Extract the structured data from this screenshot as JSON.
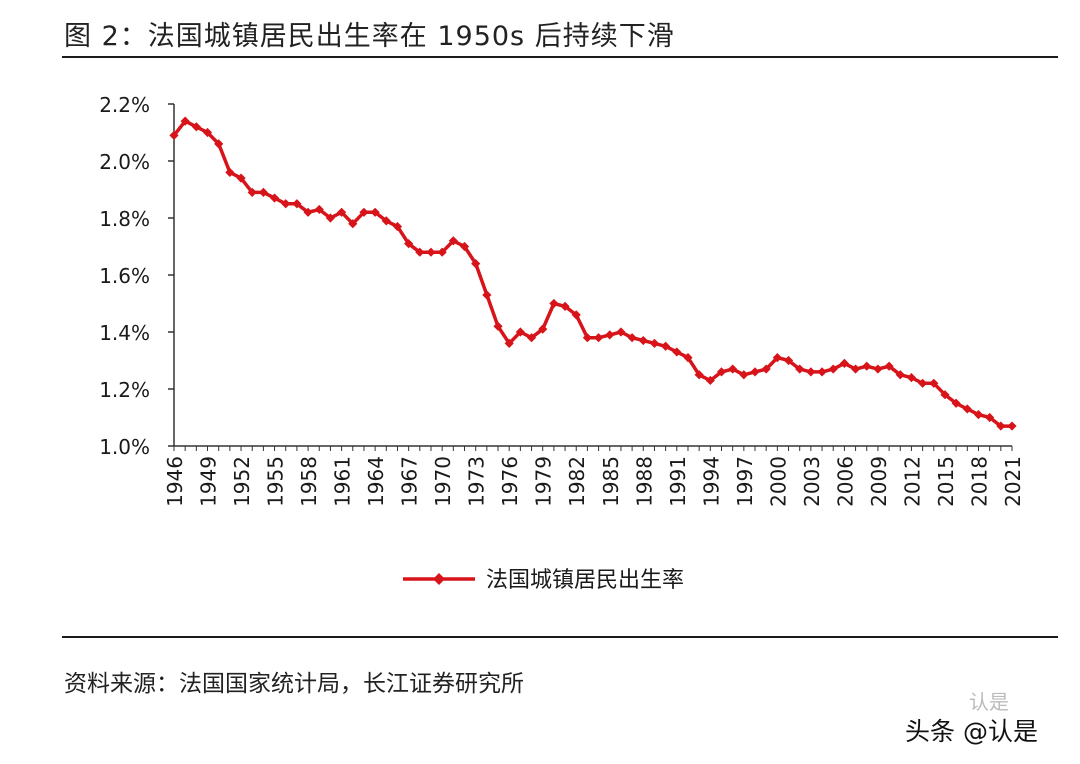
{
  "page": {
    "title": "图  2：法国城镇居民出生率在 1950s 后持续下滑",
    "source": "资料来源：法国国家统计局，长江证券研究所",
    "watermark": "头条 @认是",
    "watermark_badge": "认是"
  },
  "colors": {
    "series": "#d7141a",
    "axis": "#333333"
  },
  "chart_data": {
    "type": "line",
    "title": "",
    "xlabel": "",
    "ylabel": "",
    "ylim": [
      1.0,
      2.2
    ],
    "yticks": [
      "1.0%",
      "1.2%",
      "1.4%",
      "1.6%",
      "1.8%",
      "2.0%",
      "2.2%"
    ],
    "ytick_values": [
      1.0,
      1.2,
      1.4,
      1.6,
      1.8,
      2.0,
      2.2
    ],
    "xtick_labels": [
      "1946",
      "1949",
      "1952",
      "1955",
      "1958",
      "1961",
      "1964",
      "1967",
      "1970",
      "1973",
      "1976",
      "1979",
      "1982",
      "1985",
      "1988",
      "1991",
      "1994",
      "1997",
      "2000",
      "2003",
      "2006",
      "2009",
      "2012",
      "2015",
      "2018",
      "2021"
    ],
    "grid": false,
    "legend_position": "bottom",
    "x": [
      1946,
      1947,
      1948,
      1949,
      1950,
      1951,
      1952,
      1953,
      1954,
      1955,
      1956,
      1957,
      1958,
      1959,
      1960,
      1961,
      1962,
      1963,
      1964,
      1965,
      1966,
      1967,
      1968,
      1969,
      1970,
      1971,
      1972,
      1973,
      1974,
      1975,
      1976,
      1977,
      1978,
      1979,
      1980,
      1981,
      1982,
      1983,
      1984,
      1985,
      1986,
      1987,
      1988,
      1989,
      1990,
      1991,
      1992,
      1993,
      1994,
      1995,
      1996,
      1997,
      1998,
      1999,
      2000,
      2001,
      2002,
      2003,
      2004,
      2005,
      2006,
      2007,
      2008,
      2009,
      2010,
      2011,
      2012,
      2013,
      2014,
      2015,
      2016,
      2017,
      2018,
      2019,
      2020,
      2021
    ],
    "series": [
      {
        "name": "法国城镇居民出生率",
        "values": [
          2.09,
          2.14,
          2.12,
          2.1,
          2.06,
          1.96,
          1.94,
          1.89,
          1.89,
          1.87,
          1.85,
          1.85,
          1.82,
          1.83,
          1.8,
          1.82,
          1.78,
          1.82,
          1.82,
          1.79,
          1.77,
          1.71,
          1.68,
          1.68,
          1.68,
          1.72,
          1.7,
          1.64,
          1.53,
          1.42,
          1.36,
          1.4,
          1.38,
          1.41,
          1.5,
          1.49,
          1.46,
          1.38,
          1.38,
          1.39,
          1.4,
          1.38,
          1.37,
          1.36,
          1.35,
          1.33,
          1.31,
          1.25,
          1.23,
          1.26,
          1.27,
          1.25,
          1.26,
          1.27,
          1.31,
          1.3,
          1.27,
          1.26,
          1.26,
          1.27,
          1.29,
          1.27,
          1.28,
          1.27,
          1.28,
          1.25,
          1.24,
          1.22,
          1.22,
          1.18,
          1.15,
          1.13,
          1.11,
          1.1,
          1.07,
          1.07
        ]
      }
    ]
  }
}
